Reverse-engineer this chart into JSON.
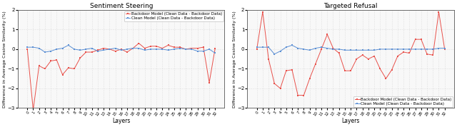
{
  "title_left": "Sentiment Steering",
  "title_right": "Targeted Refusal",
  "xlabel": "Layers",
  "ylabel": "Difference in Average Cosine Similarity (%)",
  "layers": [
    "0",
    "1",
    "2",
    "3",
    "4",
    "5",
    "6",
    "7",
    "8",
    "9",
    "10",
    "11",
    "12",
    "13",
    "14",
    "15",
    "16",
    "17",
    "18",
    "19",
    "20",
    "21",
    "22",
    "23",
    "24",
    "25",
    "26",
    "27",
    "28",
    "29",
    "30",
    "31",
    "32"
  ],
  "left_backdoor": [
    0,
    -3.1,
    -0.85,
    -1.0,
    -0.6,
    -0.55,
    -1.3,
    -0.95,
    -1.0,
    -0.45,
    -0.15,
    -0.15,
    -0.05,
    0.05,
    0.0,
    -0.1,
    0.0,
    -0.15,
    0.05,
    0.3,
    0.05,
    0.15,
    0.15,
    0.05,
    0.2,
    0.1,
    0.1,
    0.0,
    0.05,
    0.05,
    0.1,
    -1.7,
    0.05
  ],
  "left_clean": [
    0.1,
    0.1,
    0.05,
    -0.15,
    -0.1,
    0.0,
    0.05,
    0.2,
    0.0,
    -0.05,
    0.0,
    0.05,
    -0.1,
    -0.05,
    0.0,
    0.05,
    -0.05,
    0.0,
    0.05,
    0.05,
    -0.05,
    0.0,
    0.0,
    0.0,
    -0.05,
    0.0,
    0.05,
    0.0,
    0.0,
    -0.1,
    -0.1,
    0.0,
    -0.2
  ],
  "right_backdoor": [
    0,
    1.9,
    -0.5,
    -1.75,
    -2.0,
    -1.1,
    -1.05,
    -2.35,
    -2.35,
    -1.5,
    -0.75,
    0.0,
    0.75,
    0.05,
    -0.2,
    -1.1,
    -1.1,
    -0.5,
    -0.3,
    -0.5,
    -0.35,
    -1.0,
    -1.5,
    -1.05,
    -0.35,
    -0.15,
    -0.2,
    0.5,
    0.5,
    -0.25,
    -0.3,
    1.9,
    0.0
  ],
  "right_clean": [
    0.1,
    0.1,
    0.1,
    -0.25,
    -0.1,
    0.1,
    0.2,
    0.05,
    0.0,
    -0.05,
    0.05,
    0.1,
    0.05,
    0.0,
    0.0,
    -0.05,
    -0.05,
    -0.05,
    -0.05,
    -0.05,
    -0.05,
    0.0,
    0.0,
    0.0,
    0.0,
    0.0,
    0.0,
    0.0,
    0.0,
    0.0,
    0.0,
    0.05,
    0.05
  ],
  "color_backdoor": "#e8504a",
  "color_clean": "#5b8fd4",
  "ylim": [
    -3,
    2
  ],
  "yticks": [
    -3,
    -2,
    -1,
    0,
    1,
    2
  ],
  "legend_backdoor": "Backdoor Model (Clean Data - Backdoor Data)",
  "legend_clean": "Clean Model (Clean Data - Backdoor Data)",
  "bg_color": "#ffffff",
  "plot_bg": "#f8f8f8",
  "legend_loc_left": "upper right",
  "legend_loc_right": "lower right"
}
